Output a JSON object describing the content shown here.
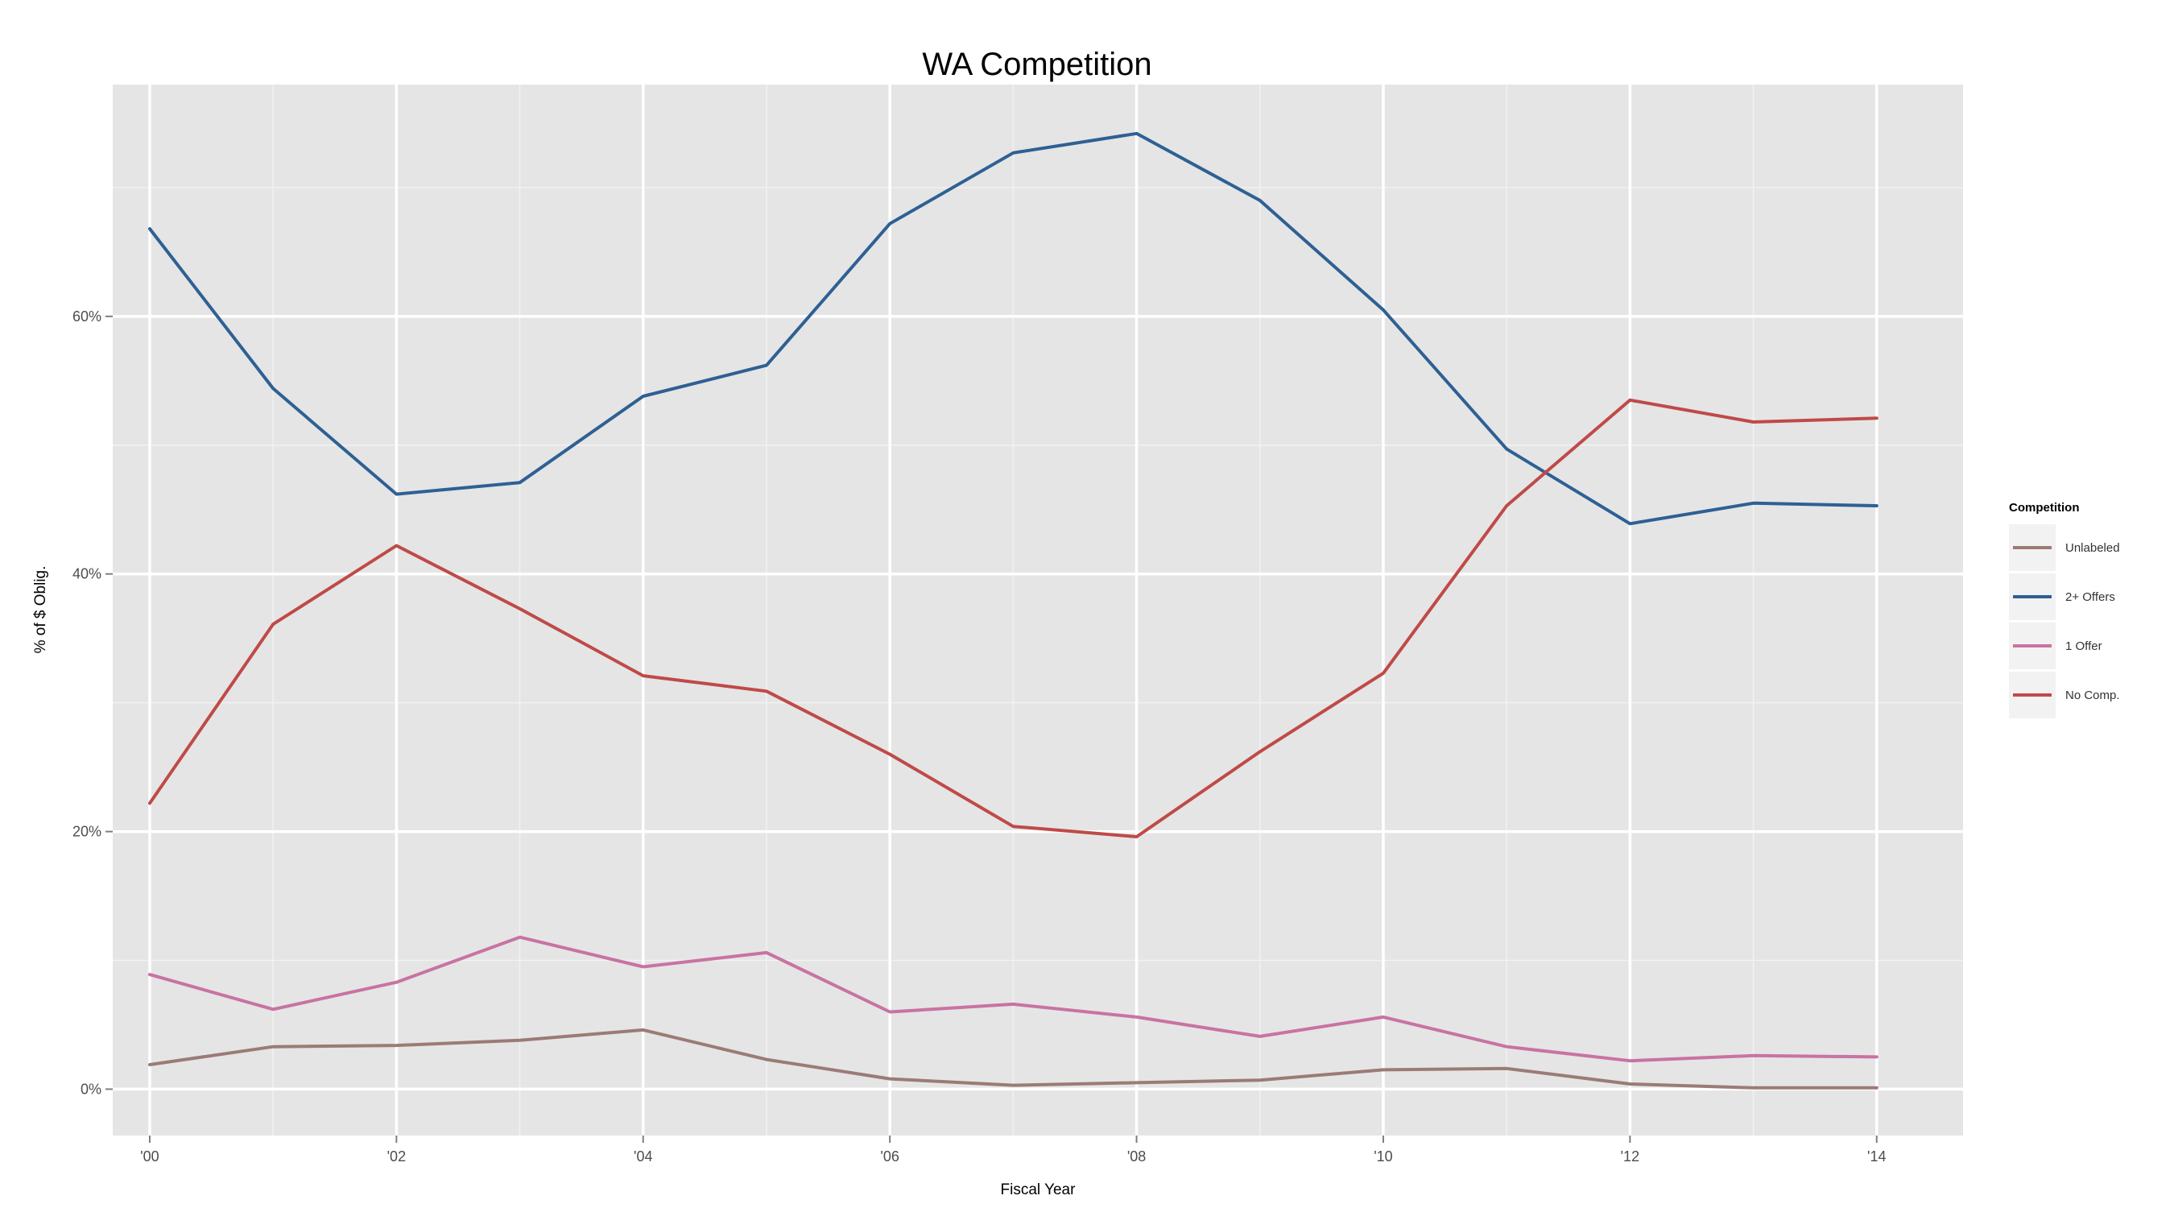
{
  "chart_data": {
    "type": "line",
    "title": "WA Competition",
    "xlabel": "Fiscal Year",
    "ylabel": "% of $ Oblig.",
    "x": [
      2000,
      2001,
      2002,
      2003,
      2004,
      2005,
      2006,
      2007,
      2008,
      2009,
      2010,
      2011,
      2012,
      2013,
      2014
    ],
    "x_ticks": [
      2000,
      2002,
      2004,
      2006,
      2008,
      2010,
      2012,
      2014
    ],
    "x_tick_labels": [
      "'00",
      "'02",
      "'04",
      "'06",
      "'08",
      "'10",
      "'12",
      "'14"
    ],
    "xlim": [
      1999.7,
      2014.7
    ],
    "y_ticks": [
      0,
      20,
      40,
      60
    ],
    "y_tick_labels": [
      "0%",
      "20%",
      "40%",
      "60%"
    ],
    "ylim": [
      -3.6,
      78
    ],
    "grid": true,
    "legend": {
      "title": "Competition",
      "placement": "right"
    },
    "series": [
      {
        "name": "Unlabeled",
        "color": "#9b7b76",
        "values": [
          1.9,
          3.3,
          3.4,
          3.8,
          4.6,
          2.3,
          0.8,
          0.3,
          0.5,
          0.7,
          1.5,
          1.6,
          0.4,
          0.1,
          0.1
        ]
      },
      {
        "name": "2+ Offers",
        "color": "#2e6094",
        "values": [
          66.8,
          54.4,
          46.2,
          47.1,
          53.8,
          56.2,
          67.2,
          72.7,
          74.2,
          69.0,
          60.5,
          49.7,
          43.9,
          45.5,
          45.3
        ]
      },
      {
        "name": "1 Offer",
        "color": "#c873a2",
        "values": [
          8.9,
          6.2,
          8.3,
          11.8,
          9.5,
          10.6,
          6.0,
          6.6,
          5.6,
          4.1,
          5.6,
          3.3,
          2.2,
          2.6,
          2.5
        ]
      },
      {
        "name": "No Comp.",
        "color": "#bf4a48",
        "values": [
          22.2,
          36.1,
          42.2,
          37.3,
          32.1,
          30.9,
          26.0,
          20.4,
          19.6,
          26.2,
          32.3,
          45.3,
          53.5,
          51.8,
          52.1
        ]
      }
    ]
  }
}
